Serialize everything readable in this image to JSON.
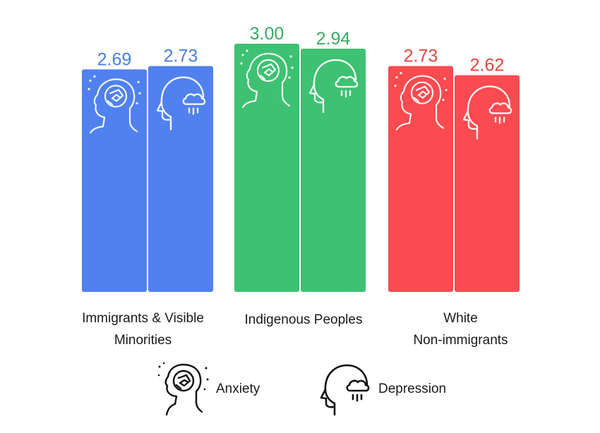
{
  "chart_data": {
    "type": "bar",
    "categories": [
      "Immigrants & Visible\nMinorities",
      "Indigenous Peoples",
      "White\nNon-immigrants"
    ],
    "series": [
      {
        "name": "Anxiety",
        "values": [
          2.69,
          3.0,
          2.73
        ]
      },
      {
        "name": "Depression",
        "values": [
          2.73,
          2.94,
          2.62
        ]
      }
    ],
    "value_labels": [
      [
        "2.69",
        "2.73"
      ],
      [
        "3.00",
        "2.94"
      ],
      [
        "2.73",
        "2.62"
      ]
    ],
    "ylim": [
      0,
      3.0
    ],
    "colors": [
      "#5081ee",
      "#3ec172",
      "#fa4b50"
    ],
    "label_colors": [
      "#4a7ee0",
      "#3aab62",
      "#e9443f"
    ],
    "grid": false,
    "legend_position": "bottom-center",
    "title": "",
    "xlabel": "",
    "ylabel": ""
  },
  "legend": {
    "anxiety": {
      "label": "Anxiety",
      "icon": "anxiety-head-icon"
    },
    "depression": {
      "label": "Depression",
      "icon": "depression-head-icon"
    }
  }
}
